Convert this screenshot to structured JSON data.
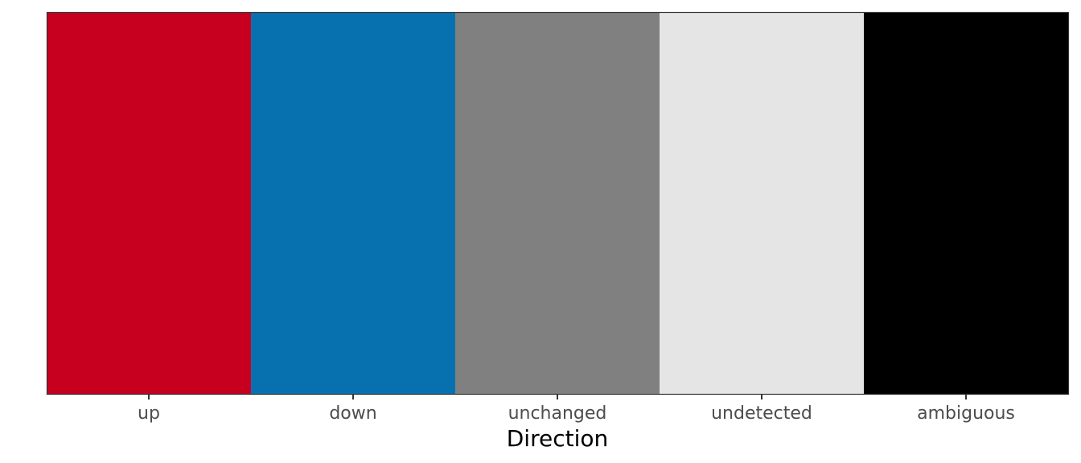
{
  "chart_data": {
    "type": "heatmap",
    "title": "",
    "xlabel": "Direction",
    "ylabel": "",
    "categories": [
      "up",
      "down",
      "unchanged",
      "undetected",
      "ambiguous"
    ],
    "colors": [
      "#C70020",
      "#0771B0",
      "#808080",
      "#E5E5E5",
      "#000000"
    ],
    "grid": false,
    "legend": "none"
  },
  "style": {
    "panel_border_color": "#333333",
    "tick_color": "#333333",
    "tick_label_color": "#4d4d4d",
    "axis_title_color": "#000000"
  }
}
